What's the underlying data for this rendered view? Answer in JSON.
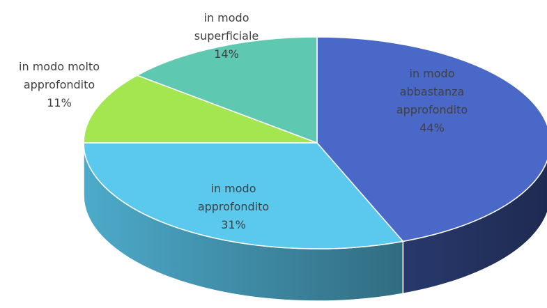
{
  "chart_data": {
    "type": "pie",
    "categories": [
      "in modo abbastanza approfondito",
      "in modo approfondito",
      "in modo molto approfondito",
      "in modo superficiale"
    ],
    "values": [
      44,
      31,
      11,
      14
    ],
    "value_labels": [
      "44%",
      "31%",
      "11%",
      "14%"
    ],
    "colors": [
      "#4a68c8",
      "#5bc8ee",
      "#a3e64f",
      "#5ec9b0"
    ]
  }
}
